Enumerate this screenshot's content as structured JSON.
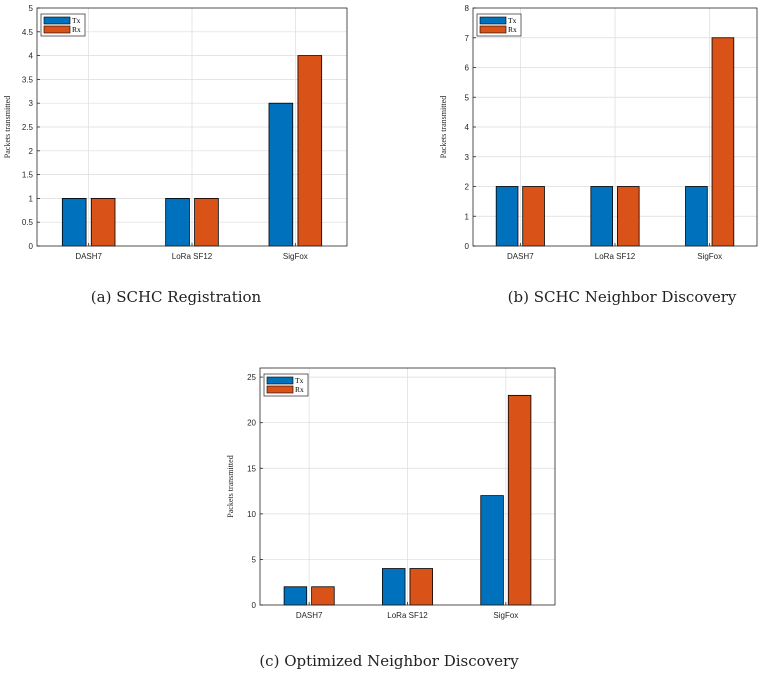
{
  "chart_data": [
    {
      "type": "bar",
      "caption": "(a) SCHC Registration",
      "categories": [
        "DASH7",
        "LoRa SF12",
        "SigFox"
      ],
      "series": [
        {
          "name": "Tx",
          "values": [
            1,
            1,
            3
          ]
        },
        {
          "name": "Rx",
          "values": [
            1,
            1,
            4
          ]
        }
      ],
      "ylabel": "Packets transmitted",
      "ylim": [
        0,
        5
      ],
      "yticks": [
        0,
        0.5,
        1,
        1.5,
        2,
        2.5,
        3,
        3.5,
        4,
        4.5,
        5
      ],
      "grid": true,
      "legend": "top-left"
    },
    {
      "type": "bar",
      "caption": "(b) SCHC Neighbor Discovery",
      "categories": [
        "DASH7",
        "LoRa SF12",
        "SigFox"
      ],
      "series": [
        {
          "name": "Tx",
          "values": [
            2,
            2,
            2
          ]
        },
        {
          "name": "Rx",
          "values": [
            2,
            2,
            7
          ]
        }
      ],
      "ylabel": "Packets transmitted",
      "ylim": [
        0,
        8
      ],
      "yticks": [
        0,
        1,
        2,
        3,
        4,
        5,
        6,
        7,
        8
      ],
      "grid": true,
      "legend": "top-left"
    },
    {
      "type": "bar",
      "caption": "(c) Optimized Neighbor Discovery",
      "categories": [
        "DASH7",
        "LoRa SF12",
        "SigFox"
      ],
      "series": [
        {
          "name": "Tx",
          "values": [
            2,
            4,
            12
          ]
        },
        {
          "name": "Rx",
          "values": [
            2,
            4,
            23
          ]
        }
      ],
      "ylabel": "Packets transmitted",
      "ylim": [
        0,
        26
      ],
      "yticks": [
        0,
        5,
        10,
        15,
        20,
        25
      ],
      "grid": true,
      "legend": "top-left"
    }
  ],
  "colors": {
    "tx": "#0072BD",
    "rx": "#D95319",
    "grid": "#dcdcdc",
    "axis": "#262626"
  }
}
